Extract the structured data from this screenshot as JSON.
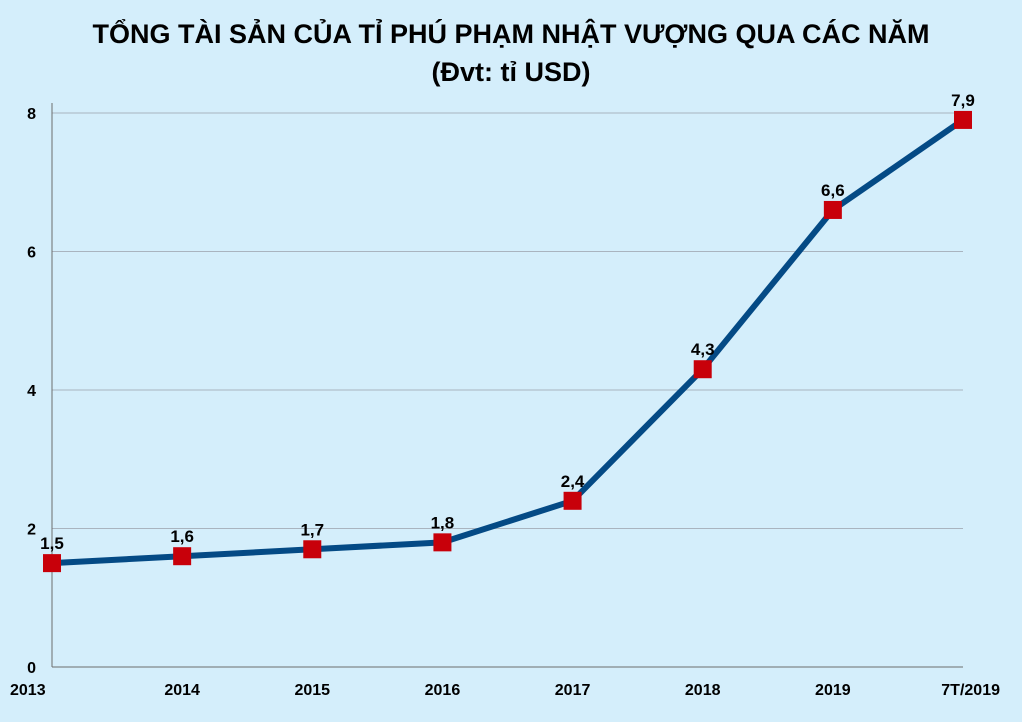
{
  "chart_data": {
    "type": "line",
    "title": "TỔNG TÀI SẢN CỦA TỈ PHÚ PHẠM NHẬT VƯỢNG QUA CÁC NĂM",
    "subtitle": "(Đvt: tỉ USD)",
    "xlabel": "",
    "ylabel": "",
    "categories": [
      "2013",
      "2014",
      "2015",
      "2016",
      "2017",
      "2018",
      "2019",
      "7T/2019"
    ],
    "series": [
      {
        "values": [
          1.5,
          1.6,
          1.7,
          1.8,
          2.4,
          4.3,
          6.6,
          7.9
        ],
        "value_labels": [
          "1,5",
          "1,6",
          "1,7",
          "1,8",
          "2,4",
          "4,3",
          "6,6",
          "7,9"
        ],
        "line_color": "#044a85",
        "marker_color": "#c8000a",
        "marker": "square"
      }
    ],
    "y_ticks": [
      0,
      2,
      4,
      6,
      8
    ],
    "ylim": [
      0,
      8
    ],
    "grid": true,
    "legend": "none",
    "colors": {
      "background": "#d4eefb",
      "grid": "#a9b4bf",
      "axis": "#6d6d6d"
    }
  }
}
